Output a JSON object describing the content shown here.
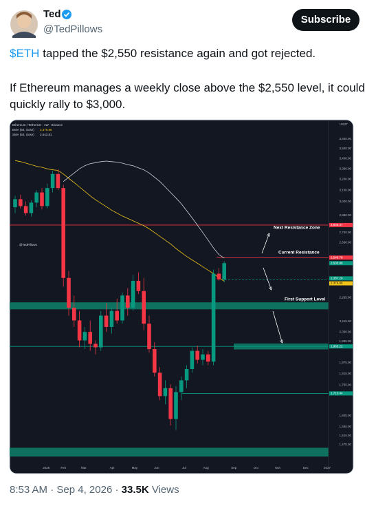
{
  "tweet": {
    "author_name": "Ted",
    "handle": "@TedPillows",
    "button": "Subscribe",
    "cashtag": "$ETH",
    "line1": " tapped the $2,550 resistance again and got rejected.",
    "line2": "If Ethereum manages a weekly close above the $2,550 level, it could quickly rally to $3,000.",
    "time": "8:53 AM",
    "date": "Sep 4, 2026",
    "views_count": "33.5K",
    "views_label": "Views"
  },
  "chart_data": {
    "type": "candlestick",
    "title": "Ethereum / TetherUS · 1W · Binance",
    "watermark": "@TedPillows",
    "currency": "USDT",
    "log_scale": true,
    "up_color": "#089981",
    "down_color": "#f23645",
    "candles": [
      [
        2950,
        3050,
        2900,
        3020
      ],
      [
        3020,
        3060,
        2940,
        2960
      ],
      [
        2960,
        3000,
        2880,
        2900
      ],
      [
        2900,
        3010,
        2870,
        2990
      ],
      [
        2990,
        3100,
        2950,
        3080
      ],
      [
        3080,
        3120,
        2930,
        2960
      ],
      [
        2960,
        3160,
        2940,
        3120
      ],
      [
        3120,
        3280,
        3080,
        3250
      ],
      [
        3250,
        3300,
        3100,
        3120
      ],
      [
        3120,
        3150,
        2340,
        2400
      ],
      [
        2400,
        2450,
        2150,
        2200
      ],
      [
        2200,
        2280,
        2080,
        2120
      ],
      [
        2120,
        2180,
        1960,
        2000
      ],
      [
        2000,
        2080,
        1950,
        2050
      ],
      [
        2050,
        2120,
        1940,
        1980
      ],
      [
        1980,
        2000,
        1920,
        1960
      ],
      [
        1960,
        2180,
        1940,
        2150
      ],
      [
        2150,
        2230,
        2050,
        2080
      ],
      [
        2080,
        2200,
        2040,
        2180
      ],
      [
        2180,
        2260,
        2100,
        2120
      ],
      [
        2120,
        2300,
        2100,
        2280
      ],
      [
        2280,
        2330,
        2150,
        2200
      ],
      [
        2200,
        2420,
        2180,
        2380
      ],
      [
        2380,
        2440,
        2290,
        2310
      ],
      [
        2310,
        2400,
        2060,
        2100
      ],
      [
        2100,
        2150,
        1930,
        1950
      ],
      [
        1950,
        1990,
        1800,
        1820
      ],
      [
        1820,
        1850,
        1680,
        1700
      ],
      [
        1700,
        1780,
        1660,
        1740
      ],
      [
        1740,
        1760,
        1560,
        1590
      ],
      [
        1590,
        1750,
        1540,
        1720
      ],
      [
        1720,
        1800,
        1680,
        1780
      ],
      [
        1780,
        1860,
        1740,
        1840
      ],
      [
        1840,
        1960,
        1820,
        1940
      ],
      [
        1940,
        1970,
        1870,
        1890
      ],
      [
        1890,
        1950,
        1860,
        1920
      ],
      [
        1920,
        1940,
        1860,
        1880
      ],
      [
        1880,
        2460,
        1860,
        2430
      ],
      [
        2430,
        2470,
        2380,
        2390
      ],
      [
        2390,
        2520,
        2370,
        2505.86
      ]
    ],
    "series": [
      {
        "name": "EMA (50, close)",
        "color": "#f0c419",
        "legend_value": "2,376.86",
        "values": [
          3380,
          3370,
          3355,
          3340,
          3325,
          3315,
          3300,
          3290,
          3285,
          3250,
          3210,
          3170,
          3130,
          3090,
          3050,
          3015,
          2985,
          2955,
          2925,
          2900,
          2875,
          2855,
          2835,
          2815,
          2795,
          2770,
          2740,
          2710,
          2680,
          2650,
          2615,
          2585,
          2555,
          2530,
          2505,
          2480,
          2455,
          2430,
          2400,
          2376.86
        ]
      },
      {
        "name": "SMA (50, close)",
        "color": "#d1d4dc",
        "legend_value": "2,543.81",
        "values": [
          null,
          null,
          null,
          null,
          null,
          null,
          null,
          null,
          null,
          3180,
          3220,
          3260,
          3300,
          3330,
          3350,
          3360,
          3370,
          3375,
          3370,
          3365,
          3355,
          3340,
          3330,
          3310,
          3290,
          3260,
          3220,
          3180,
          3130,
          3080,
          3030,
          2980,
          2920,
          2860,
          2800,
          2740,
          2680,
          2620,
          2570,
          2543.81
        ]
      }
    ],
    "levels": {
      "values": [
        2800.47,
        2546.78,
        2505.86,
        2387.2,
        2376.86,
        1965.22,
        1713.44
      ],
      "value_labels": [
        "2,800.47",
        "2,546.78",
        "2,505.86",
        "2,387.20",
        "2,376.86",
        "1,965.22",
        "1,713.44"
      ],
      "colors": [
        "#f23645",
        "#f23645",
        "#089981",
        "#089981",
        "#f0c419",
        "#089981",
        "#089981"
      ]
    },
    "zones": [
      [
        2190,
        2235
      ],
      [
        1948,
        1982
      ],
      [
        1425,
        1462
      ]
    ],
    "zone_color": "#0e7a66",
    "annotations": [
      "Next Resistance Zone",
      "Current Resistance",
      "First Support Level"
    ],
    "xlim": [
      0,
      59
    ],
    "ylim": [
      1400,
      3800
    ],
    "xticks": [
      {
        "value": 5.8,
        "label": "2026"
      },
      {
        "value": 9,
        "label": "Feb"
      },
      {
        "value": 12.8,
        "label": "Mar"
      },
      {
        "value": 18.1,
        "label": "Apr"
      },
      {
        "value": 22.3,
        "label": "May"
      },
      {
        "value": 26.4,
        "label": "Jun"
      },
      {
        "value": 31.5,
        "label": "Jul"
      },
      {
        "value": 35.6,
        "label": "Aug"
      },
      {
        "value": 40.8,
        "label": "Sep"
      },
      {
        "value": 44.9,
        "label": "Oct"
      },
      {
        "value": 49,
        "label": "Nov"
      },
      {
        "value": 54.2,
        "label": "Dec"
      },
      {
        "value": 58.2,
        "label": "2027"
      }
    ],
    "yticks": [
      {
        "value": 3600,
        "label": "3,600.00"
      },
      {
        "value": 3500,
        "label": "3,500.00"
      },
      {
        "value": 3400,
        "label": "3,400.00"
      },
      {
        "value": 3300,
        "label": "3,300.00"
      },
      {
        "value": 3200,
        "label": "3,200.00"
      },
      {
        "value": 3100,
        "label": "3,100.00"
      },
      {
        "value": 3000,
        "label": "3,000.00"
      },
      {
        "value": 2880,
        "label": "2,880.00"
      },
      {
        "value": 2740,
        "label": "2,740.00"
      },
      {
        "value": 2660,
        "label": "2,660.00"
      },
      {
        "value": 2265,
        "label": "2,265.00"
      },
      {
        "value": 2115,
        "label": "2,115.00"
      },
      {
        "value": 2050,
        "label": "2,050.00"
      },
      {
        "value": 1995,
        "label": "1,995.00"
      },
      {
        "value": 1875,
        "label": "1,875.00"
      },
      {
        "value": 1815,
        "label": "1,815.00"
      },
      {
        "value": 1755,
        "label": "1,755.00"
      },
      {
        "value": 1605,
        "label": "1,605.00"
      },
      {
        "value": 1555,
        "label": "1,555.00"
      },
      {
        "value": 1515,
        "label": "1,515.00"
      },
      {
        "value": 1475,
        "label": "1,475.00"
      }
    ]
  }
}
